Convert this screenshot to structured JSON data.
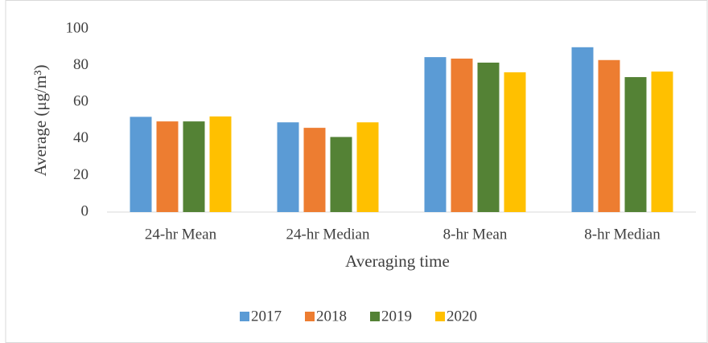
{
  "chart_data": {
    "type": "bar",
    "x_label": "Averaging time",
    "y_label": "Average (μg/m³)",
    "categories": [
      "24-hr Mean",
      "24-hr Median",
      "8-hr Mean",
      "8-hr Median"
    ],
    "series": [
      {
        "name": "2017",
        "color": "#5b9bd5",
        "values": [
          52,
          49,
          84.6,
          90
        ]
      },
      {
        "name": "2018",
        "color": "#ed7d31",
        "values": [
          49.5,
          46,
          83.8,
          83
        ]
      },
      {
        "name": "2019",
        "color": "#548235",
        "values": [
          49.5,
          41,
          81.6,
          73.7
        ]
      },
      {
        "name": "2020",
        "color": "#ffc000",
        "values": [
          52.2,
          49,
          76.3,
          76.7
        ]
      }
    ],
    "ylim": [
      0,
      100
    ],
    "yticks": [
      0,
      20,
      40,
      60,
      80,
      100
    ],
    "grid": false,
    "legend": "bottom"
  }
}
